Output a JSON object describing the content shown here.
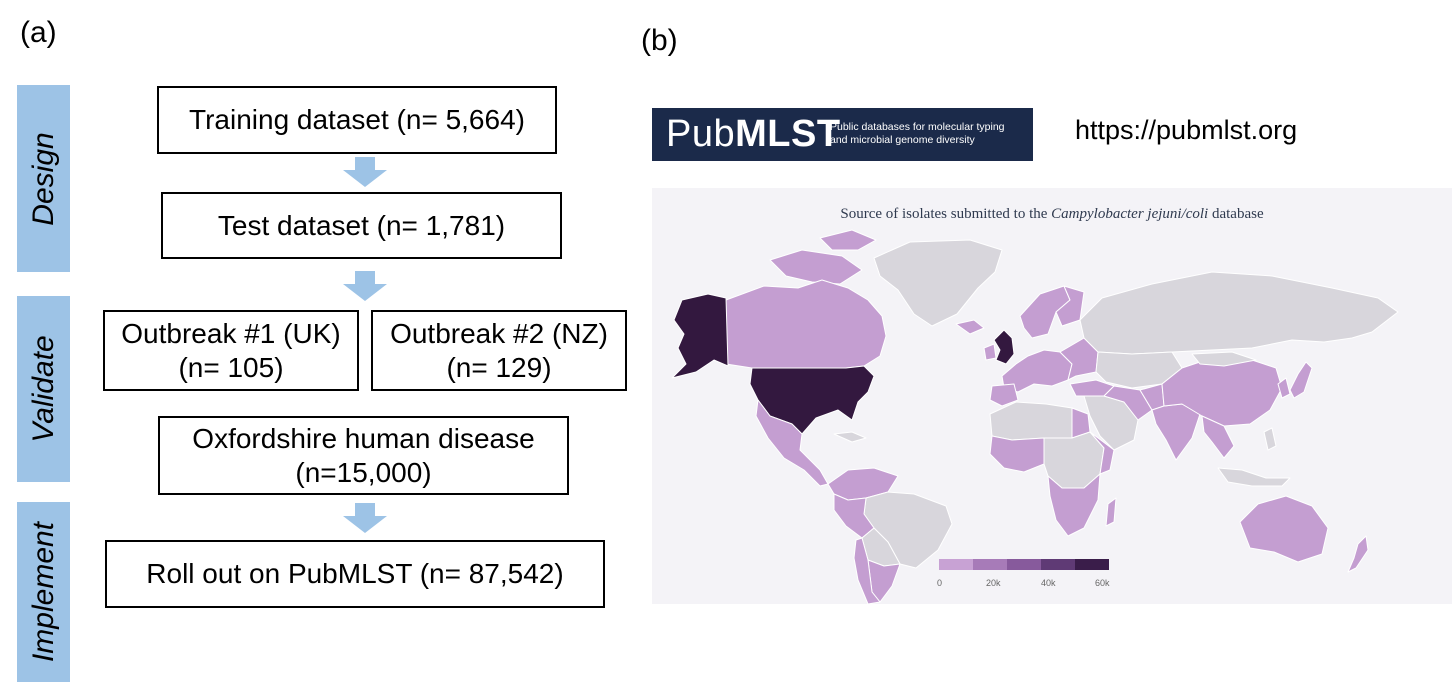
{
  "panel_a": {
    "label": "(a)",
    "phases": [
      "Design",
      "Validate",
      "Implement"
    ],
    "boxes": {
      "training": [
        "Training dataset (n= 5,664)"
      ],
      "test": [
        "Test dataset (n= 1,781)"
      ],
      "outbreak1": [
        "Outbreak #1 (UK)",
        "(n= 105)"
      ],
      "outbreak2": [
        "Outbreak #2 (NZ)",
        "(n= 129)"
      ],
      "oxford": [
        "Oxfordshire human disease",
        "(n=15,000)"
      ],
      "rollout": [
        "Roll out on PubMLST (n= 87,542)"
      ]
    },
    "arrow_color": "#9dc3e6",
    "phase_color": "#9dc3e6"
  },
  "panel_b": {
    "label": "(b)",
    "logo": {
      "brand_light": "Pub",
      "brand_bold": "MLST",
      "tagline_1": "Public databases for molecular typing",
      "tagline_2": "and microbial genome diversity",
      "bg_color": "#1b2a4a"
    },
    "url": "https://pubmlst.org",
    "map": {
      "title_prefix": "Source of isolates submitted to the ",
      "title_italic": "Campylobacter jejuni/coli",
      "title_suffix": " database",
      "colorbar_ticks": [
        "0",
        "20k",
        "40k",
        "60k"
      ],
      "colorbar_colors": [
        "#c8a2d4",
        "#a77bb8",
        "#875a9c",
        "#5f3a75",
        "#3a1d4a"
      ],
      "no_data_color": "#d8d6dc",
      "low_color": "#c49ed1",
      "high_color": "#33183f"
    }
  }
}
